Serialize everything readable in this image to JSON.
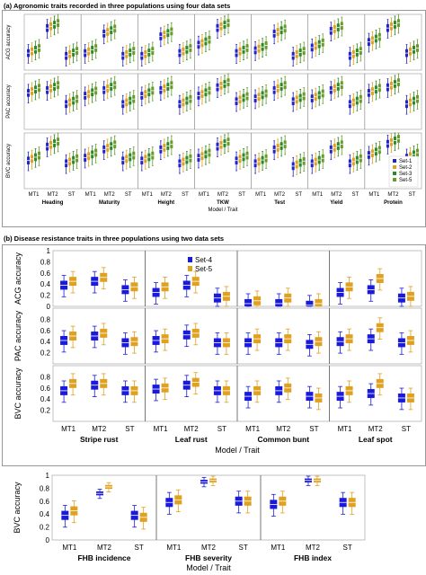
{
  "panel_a": {
    "letter": "(a)",
    "title": "Agronomic traits recorded in three populations using four data sets",
    "ylabels": [
      "ACG accuracy",
      "PAC accuracy",
      "BVC accuracy"
    ],
    "xlabel": "Model / Trait",
    "legend": [
      "Set-1",
      "Set-2",
      "Set-3",
      "Set-5"
    ],
    "colors": [
      "#2222cc",
      "#e0a020",
      "#2a8a2a",
      "#6a9a2a"
    ]
  },
  "panel_b": {
    "letter": "(b)",
    "title": "Disease resistance traits in three populations using two data sets",
    "ylabels": [
      "ACG accuracy",
      "PAC accuracy",
      "BVC accuracy"
    ],
    "xlabel": "Model / Trait",
    "legend": [
      "Set-4",
      "Set-5"
    ],
    "colors": [
      "#1a1adb",
      "#e0a020"
    ]
  },
  "panel_c": {
    "ylabel": "BVC accuracy",
    "xlabel": "Model / Trait",
    "colors": [
      "#1a1adb",
      "#e0a020"
    ]
  },
  "chart_data": [
    {
      "type": "box",
      "id": "agronomic",
      "traits": [
        "Heading",
        "Maturity",
        "Height",
        "TKW",
        "Test",
        "Yield",
        "Protein"
      ],
      "models": [
        "MT1",
        "MT2",
        "ST"
      ],
      "rows": [
        "ACG accuracy",
        "PAC accuracy",
        "BVC accuracy"
      ],
      "series": [
        "Set-1",
        "Set-2",
        "Set-3",
        "Set-5"
      ],
      "ylim": [
        0,
        1
      ],
      "medians": [
        [
          [
            0.35,
            0.8,
            0.3
          ],
          [
            0.35,
            0.7,
            0.3
          ],
          [
            0.3,
            0.65,
            0.35
          ],
          [
            0.5,
            0.8,
            0.35
          ],
          [
            0.4,
            0.7,
            0.3
          ],
          [
            0.45,
            0.75,
            0.3
          ],
          [
            0.55,
            0.8,
            0.35
          ]
        ],
        [
          [
            0.7,
            0.75,
            0.5
          ],
          [
            0.65,
            0.75,
            0.5
          ],
          [
            0.65,
            0.75,
            0.5
          ],
          [
            0.65,
            0.8,
            0.55
          ],
          [
            0.6,
            0.75,
            0.55
          ],
          [
            0.6,
            0.75,
            0.5
          ],
          [
            0.7,
            0.8,
            0.5
          ]
        ],
        [
          [
            0.55,
            0.8,
            0.5
          ],
          [
            0.6,
            0.75,
            0.55
          ],
          [
            0.55,
            0.75,
            0.5
          ],
          [
            0.6,
            0.8,
            0.55
          ],
          [
            0.5,
            0.75,
            0.45
          ],
          [
            0.5,
            0.75,
            0.5
          ],
          [
            0.65,
            0.85,
            0.6
          ]
        ]
      ]
    },
    {
      "type": "box",
      "id": "disease",
      "traits": [
        "Stripe rust",
        "Leaf rust",
        "Common bunt",
        "Leaf spot"
      ],
      "models": [
        "MT1",
        "MT2",
        "ST"
      ],
      "rows": [
        "ACG accuracy",
        "PAC accuracy",
        "BVC accuracy"
      ],
      "series": [
        "Set-4",
        "Set-5"
      ],
      "ylim": [
        0,
        1
      ],
      "yticks": [
        0,
        0.2,
        0.4,
        0.6,
        0.8,
        1.0
      ],
      "ytick_labels": [
        "0",
        "0.2",
        "0.4",
        "0.6",
        "0.8",
        "1"
      ],
      "medians": [
        [
          [
            [
              0.38,
              0.45
            ],
            [
              0.45,
              0.52
            ],
            [
              0.3,
              0.35
            ]
          ],
          [
            [
              0.25,
              0.35
            ],
            [
              0.38,
              0.45
            ],
            [
              0.15,
              0.18
            ]
          ],
          [
            [
              0.05,
              0.1
            ],
            [
              0.05,
              0.15
            ],
            [
              0.02,
              0.05
            ]
          ],
          [
            [
              0.25,
              0.35
            ],
            [
              0.3,
              0.5
            ],
            [
              0.15,
              0.18
            ]
          ]
        ],
        [
          [
            [
              0.42,
              0.5
            ],
            [
              0.5,
              0.55
            ],
            [
              0.38,
              0.4
            ]
          ],
          [
            [
              0.42,
              0.45
            ],
            [
              0.52,
              0.55
            ],
            [
              0.38,
              0.38
            ]
          ],
          [
            [
              0.38,
              0.45
            ],
            [
              0.38,
              0.45
            ],
            [
              0.35,
              0.4
            ]
          ],
          [
            [
              0.4,
              0.45
            ],
            [
              0.45,
              0.65
            ],
            [
              0.38,
              0.42
            ]
          ]
        ],
        [
          [
            [
              0.55,
              0.68
            ],
            [
              0.65,
              0.68
            ],
            [
              0.55,
              0.55
            ]
          ],
          [
            [
              0.58,
              0.6
            ],
            [
              0.65,
              0.7
            ],
            [
              0.55,
              0.55
            ]
          ],
          [
            [
              0.45,
              0.55
            ],
            [
              0.55,
              0.6
            ],
            [
              0.45,
              0.42
            ]
          ],
          [
            [
              0.45,
              0.55
            ],
            [
              0.5,
              0.68
            ],
            [
              0.42,
              0.42
            ]
          ]
        ]
      ]
    },
    {
      "type": "box",
      "id": "fhb",
      "traits": [
        "FHB incidence",
        "FHB severity",
        "FHB index"
      ],
      "models": [
        "MT1",
        "MT2",
        "ST"
      ],
      "series": [
        "Set-4",
        "Set-5"
      ],
      "ylim": [
        0,
        1
      ],
      "yticks": [
        0,
        0.2,
        0.4,
        0.6,
        0.8,
        1.0
      ],
      "ytick_labels": [
        "0",
        "0.2",
        "0.4",
        "0.6",
        "0.8",
        "1"
      ],
      "medians": [
        [
          [
            0.38,
            0.45
          ],
          [
            0.72,
            0.82
          ],
          [
            0.38,
            0.35
          ]
        ],
        [
          [
            0.58,
            0.62
          ],
          [
            0.9,
            0.92
          ],
          [
            0.6,
            0.6
          ]
        ],
        [
          [
            0.55,
            0.6
          ],
          [
            0.92,
            0.92
          ],
          [
            0.58,
            0.58
          ]
        ]
      ]
    }
  ]
}
